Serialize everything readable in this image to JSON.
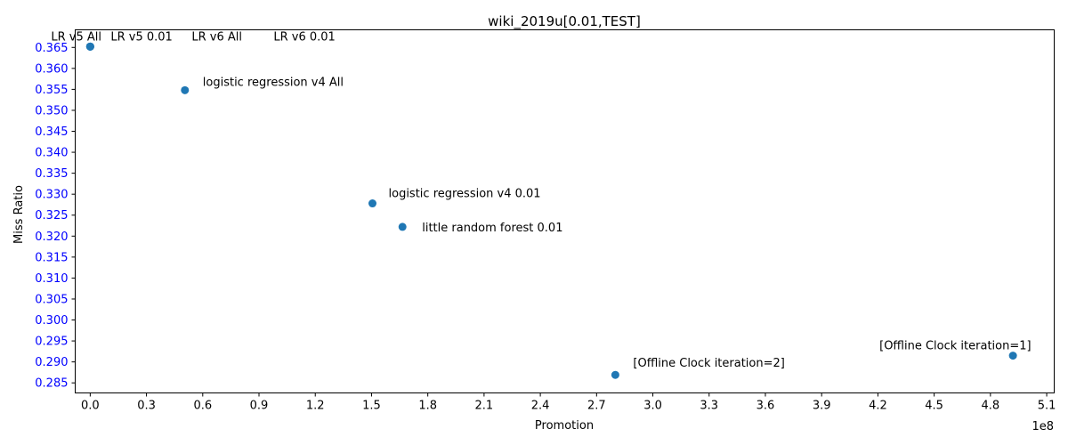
{
  "chart_data": {
    "type": "scatter",
    "title": "wiki_2019u[0.01,TEST]",
    "xlabel": "Promotion",
    "ylabel": "Miss Ratio",
    "x_offset_label": "1e8",
    "xlim": [
      -0.08,
      5.14
    ],
    "ylim": [
      0.2826,
      0.3692
    ],
    "xticks": [
      0.0,
      0.3,
      0.6,
      0.9,
      1.2,
      1.5,
      1.8,
      2.1,
      2.4,
      2.7,
      3.0,
      3.3,
      3.6,
      3.9,
      4.2,
      4.5,
      4.8,
      5.1
    ],
    "xtick_labels": [
      "0.0",
      "0.3",
      "0.6",
      "0.9",
      "1.2",
      "1.5",
      "1.8",
      "2.1",
      "2.4",
      "2.7",
      "3.0",
      "3.3",
      "3.6",
      "3.9",
      "4.2",
      "4.5",
      "4.8",
      "5.1"
    ],
    "yticks": [
      0.285,
      0.29,
      0.295,
      0.3,
      0.305,
      0.31,
      0.315,
      0.32,
      0.325,
      0.33,
      0.335,
      0.34,
      0.345,
      0.35,
      0.355,
      0.36,
      0.365
    ],
    "ytick_labels": [
      "0.285",
      "0.290",
      "0.295",
      "0.300",
      "0.305",
      "0.310",
      "0.315",
      "0.320",
      "0.325",
      "0.330",
      "0.335",
      "0.340",
      "0.345",
      "0.350",
      "0.355",
      "0.360",
      "0.365"
    ],
    "y_tick_color": "#0000ff",
    "marker_color": "#1f77b4",
    "grid": false,
    "points": [
      {
        "label": "LR v5 All",
        "x": 0.0,
        "y": 0.3652
      },
      {
        "label": "LR v5 0.01",
        "x": 0.0,
        "y": 0.3652
      },
      {
        "label": "LR v6 All",
        "x": 0.0,
        "y": 0.3652
      },
      {
        "label": "LR v6 0.01",
        "x": 0.0,
        "y": 0.3652
      },
      {
        "label": "logistic regression v4 All",
        "x": 0.505,
        "y": 0.3548
      },
      {
        "label": "logistic regression v4 0.01",
        "x": 1.505,
        "y": 0.3278
      },
      {
        "label": "little random forest 0.01",
        "x": 1.665,
        "y": 0.3222
      },
      {
        "label": "[Offline Clock iteration=1]",
        "x": 4.92,
        "y": 0.2915
      },
      {
        "label": "[Offline Clock iteration=2]",
        "x": 2.8,
        "y": 0.2869
      }
    ]
  }
}
